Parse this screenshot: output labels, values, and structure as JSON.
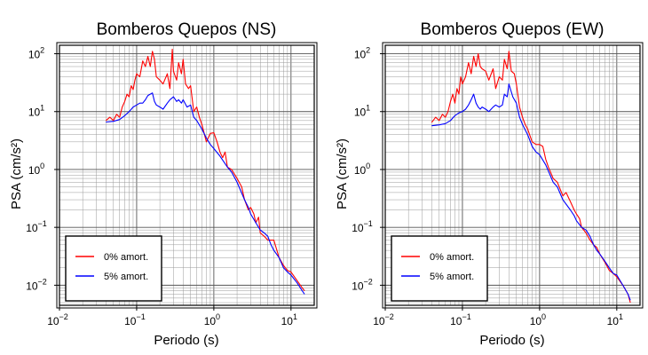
{
  "chart_data": [
    {
      "type": "line",
      "title": "Bomberos Quepos (NS)",
      "xlabel": "Periodo (s)",
      "ylabel": "PSA (cm/s²)",
      "xscale": "log",
      "yscale": "log",
      "xlim": [
        0.01,
        20
      ],
      "ylim": [
        0.0045,
        140
      ],
      "x_ticks": [
        {
          "value": 0.01,
          "base": "10",
          "exp": "−2"
        },
        {
          "value": 0.1,
          "base": "10",
          "exp": "−1"
        },
        {
          "value": 1,
          "base": "10",
          "exp": "0"
        },
        {
          "value": 10,
          "base": "10",
          "exp": "1"
        }
      ],
      "y_ticks": [
        {
          "value": 0.01,
          "base": "10",
          "exp": "−2"
        },
        {
          "value": 0.1,
          "base": "10",
          "exp": "−1"
        },
        {
          "value": 1,
          "base": "10",
          "exp": "0"
        },
        {
          "value": 10,
          "base": "10",
          "exp": "1"
        },
        {
          "value": 100,
          "base": "10",
          "exp": "2"
        }
      ],
      "grid": true,
      "legend_position": "bottom-left",
      "series": [
        {
          "name": "0% amort.",
          "color": "#ff0000",
          "points": [
            [
              0.04,
              7
            ],
            [
              0.045,
              8
            ],
            [
              0.05,
              7
            ],
            [
              0.055,
              9
            ],
            [
              0.06,
              8
            ],
            [
              0.065,
              12
            ],
            [
              0.07,
              15
            ],
            [
              0.075,
              20
            ],
            [
              0.08,
              18
            ],
            [
              0.085,
              28
            ],
            [
              0.09,
              24
            ],
            [
              0.095,
              35
            ],
            [
              0.1,
              45
            ],
            [
              0.11,
              40
            ],
            [
              0.12,
              75
            ],
            [
              0.13,
              60
            ],
            [
              0.14,
              90
            ],
            [
              0.15,
              60
            ],
            [
              0.16,
              110
            ],
            [
              0.17,
              80
            ],
            [
              0.18,
              40
            ],
            [
              0.2,
              35
            ],
            [
              0.22,
              30
            ],
            [
              0.25,
              45
            ],
            [
              0.27,
              25
            ],
            [
              0.29,
              120
            ],
            [
              0.3,
              50
            ],
            [
              0.33,
              35
            ],
            [
              0.35,
              70
            ],
            [
              0.38,
              45
            ],
            [
              0.4,
              80
            ],
            [
              0.43,
              30
            ],
            [
              0.47,
              25
            ],
            [
              0.5,
              28
            ],
            [
              0.55,
              10
            ],
            [
              0.6,
              12
            ],
            [
              0.65,
              8
            ],
            [
              0.7,
              6
            ],
            [
              0.8,
              3
            ],
            [
              0.9,
              4.2
            ],
            [
              1.0,
              4.3
            ],
            [
              1.1,
              3
            ],
            [
              1.2,
              2
            ],
            [
              1.3,
              1.6
            ],
            [
              1.4,
              2
            ],
            [
              1.5,
              1.1
            ],
            [
              1.7,
              1.0
            ],
            [
              2.0,
              0.7
            ],
            [
              2.3,
              0.5
            ],
            [
              2.5,
              0.3
            ],
            [
              2.8,
              0.2
            ],
            [
              3.0,
              0.22
            ],
            [
              3.3,
              0.17
            ],
            [
              3.5,
              0.12
            ],
            [
              3.8,
              0.15
            ],
            [
              4.0,
              0.08
            ],
            [
              4.5,
              0.07
            ],
            [
              5.0,
              0.06
            ],
            [
              5.5,
              0.06
            ],
            [
              6.0,
              0.06
            ],
            [
              7.0,
              0.03
            ],
            [
              8.0,
              0.022
            ],
            [
              9.0,
              0.018
            ],
            [
              10,
              0.017
            ],
            [
              12,
              0.012
            ],
            [
              14,
              0.009
            ],
            [
              15,
              0.008
            ]
          ]
        },
        {
          "name": "5% amort.",
          "color": "#0000ff",
          "points": [
            [
              0.04,
              6.6
            ],
            [
              0.05,
              6.8
            ],
            [
              0.06,
              7.3
            ],
            [
              0.07,
              8.5
            ],
            [
              0.08,
              10
            ],
            [
              0.09,
              12
            ],
            [
              0.1,
              13
            ],
            [
              0.11,
              14
            ],
            [
              0.12,
              14
            ],
            [
              0.13,
              16
            ],
            [
              0.14,
              19
            ],
            [
              0.15,
              20
            ],
            [
              0.16,
              21
            ],
            [
              0.17,
              15
            ],
            [
              0.18,
              13
            ],
            [
              0.2,
              12
            ],
            [
              0.22,
              11
            ],
            [
              0.25,
              14
            ],
            [
              0.27,
              16
            ],
            [
              0.3,
              18
            ],
            [
              0.33,
              15
            ],
            [
              0.35,
              16
            ],
            [
              0.38,
              14
            ],
            [
              0.4,
              16
            ],
            [
              0.45,
              12
            ],
            [
              0.5,
              13
            ],
            [
              0.55,
              8
            ],
            [
              0.6,
              7
            ],
            [
              0.7,
              5
            ],
            [
              0.8,
              3.5
            ],
            [
              0.9,
              2.7
            ],
            [
              1.0,
              2.3
            ],
            [
              1.2,
              1.7
            ],
            [
              1.5,
              1.1
            ],
            [
              1.7,
              0.9
            ],
            [
              2.0,
              0.6
            ],
            [
              2.5,
              0.3
            ],
            [
              2.8,
              0.22
            ],
            [
              3.0,
              0.17
            ],
            [
              3.5,
              0.12
            ],
            [
              4.0,
              0.09
            ],
            [
              4.5,
              0.08
            ],
            [
              5.0,
              0.07
            ],
            [
              5.5,
              0.05
            ],
            [
              6.0,
              0.04
            ],
            [
              7.0,
              0.03
            ],
            [
              8.0,
              0.02
            ],
            [
              9.0,
              0.017
            ],
            [
              10,
              0.015
            ],
            [
              12,
              0.011
            ],
            [
              14,
              0.008
            ],
            [
              15,
              0.007
            ]
          ]
        }
      ]
    },
    {
      "type": "line",
      "title": "Bomberos Quepos (EW)",
      "xlabel": "Periodo (s)",
      "ylabel": "PSA (cm/s²)",
      "xscale": "log",
      "yscale": "log",
      "xlim": [
        0.01,
        20
      ],
      "ylim": [
        0.0045,
        140
      ],
      "x_ticks": [
        {
          "value": 0.01,
          "base": "10",
          "exp": "−2"
        },
        {
          "value": 0.1,
          "base": "10",
          "exp": "−1"
        },
        {
          "value": 1,
          "base": "10",
          "exp": "0"
        },
        {
          "value": 10,
          "base": "10",
          "exp": "1"
        }
      ],
      "y_ticks": [
        {
          "value": 0.01,
          "base": "10",
          "exp": "−2"
        },
        {
          "value": 0.1,
          "base": "10",
          "exp": "−1"
        },
        {
          "value": 1,
          "base": "10",
          "exp": "0"
        },
        {
          "value": 10,
          "base": "10",
          "exp": "1"
        },
        {
          "value": 100,
          "base": "10",
          "exp": "2"
        }
      ],
      "grid": true,
      "legend_position": "bottom-left",
      "series": [
        {
          "name": "0% amort.",
          "color": "#ff0000",
          "points": [
            [
              0.04,
              6.5
            ],
            [
              0.045,
              8
            ],
            [
              0.05,
              7
            ],
            [
              0.055,
              9
            ],
            [
              0.06,
              8
            ],
            [
              0.065,
              10
            ],
            [
              0.07,
              15
            ],
            [
              0.075,
              20
            ],
            [
              0.08,
              14
            ],
            [
              0.085,
              25
            ],
            [
              0.09,
              20
            ],
            [
              0.095,
              40
            ],
            [
              0.1,
              30
            ],
            [
              0.11,
              40
            ],
            [
              0.12,
              70
            ],
            [
              0.13,
              45
            ],
            [
              0.14,
              90
            ],
            [
              0.15,
              60
            ],
            [
              0.16,
              100
            ],
            [
              0.17,
              60
            ],
            [
              0.18,
              55
            ],
            [
              0.2,
              50
            ],
            [
              0.22,
              35
            ],
            [
              0.25,
              55
            ],
            [
              0.27,
              25
            ],
            [
              0.3,
              40
            ],
            [
              0.33,
              35
            ],
            [
              0.35,
              80
            ],
            [
              0.38,
              55
            ],
            [
              0.4,
              110
            ],
            [
              0.43,
              50
            ],
            [
              0.47,
              45
            ],
            [
              0.5,
              30
            ],
            [
              0.55,
              12
            ],
            [
              0.6,
              8
            ],
            [
              0.65,
              6
            ],
            [
              0.7,
              5
            ],
            [
              0.8,
              3
            ],
            [
              0.9,
              2.7
            ],
            [
              1.0,
              2.7
            ],
            [
              1.1,
              2.5
            ],
            [
              1.2,
              1.5
            ],
            [
              1.3,
              1.1
            ],
            [
              1.5,
              0.7
            ],
            [
              1.7,
              0.6
            ],
            [
              2.0,
              0.35
            ],
            [
              2.2,
              0.4
            ],
            [
              2.5,
              0.28
            ],
            [
              2.8,
              0.2
            ],
            [
              3.0,
              0.17
            ],
            [
              3.3,
              0.14
            ],
            [
              3.5,
              0.1
            ],
            [
              4.0,
              0.08
            ],
            [
              4.5,
              0.06
            ],
            [
              5.0,
              0.05
            ],
            [
              5.5,
              0.045
            ],
            [
              6.0,
              0.035
            ],
            [
              7.0,
              0.025
            ],
            [
              8.0,
              0.018
            ],
            [
              9.0,
              0.016
            ],
            [
              10,
              0.014
            ],
            [
              12,
              0.01
            ],
            [
              14,
              0.007
            ],
            [
              15,
              0.005
            ]
          ]
        },
        {
          "name": "5% amort.",
          "color": "#0000ff",
          "points": [
            [
              0.04,
              5.7
            ],
            [
              0.05,
              5.9
            ],
            [
              0.06,
              6.2
            ],
            [
              0.07,
              7
            ],
            [
              0.08,
              8.5
            ],
            [
              0.09,
              9.5
            ],
            [
              0.1,
              10
            ],
            [
              0.11,
              11
            ],
            [
              0.12,
              13
            ],
            [
              0.13,
              16
            ],
            [
              0.14,
              20
            ],
            [
              0.15,
              14
            ],
            [
              0.16,
              12
            ],
            [
              0.17,
              11
            ],
            [
              0.18,
              12
            ],
            [
              0.2,
              11
            ],
            [
              0.22,
              10
            ],
            [
              0.25,
              12
            ],
            [
              0.27,
              13
            ],
            [
              0.3,
              12
            ],
            [
              0.33,
              13
            ],
            [
              0.35,
              20
            ],
            [
              0.38,
              18
            ],
            [
              0.4,
              30
            ],
            [
              0.45,
              18
            ],
            [
              0.5,
              14
            ],
            [
              0.55,
              8
            ],
            [
              0.6,
              6
            ],
            [
              0.7,
              4
            ],
            [
              0.8,
              2.5
            ],
            [
              0.9,
              2
            ],
            [
              1.0,
              1.8
            ],
            [
              1.2,
              1.2
            ],
            [
              1.5,
              0.6
            ],
            [
              1.7,
              0.5
            ],
            [
              2.0,
              0.3
            ],
            [
              2.5,
              0.2
            ],
            [
              2.8,
              0.16
            ],
            [
              3.0,
              0.13
            ],
            [
              3.5,
              0.1
            ],
            [
              4.0,
              0.09
            ],
            [
              4.5,
              0.07
            ],
            [
              5.0,
              0.05
            ],
            [
              5.5,
              0.04
            ],
            [
              6.0,
              0.035
            ],
            [
              7.0,
              0.026
            ],
            [
              8.0,
              0.02
            ],
            [
              9.0,
              0.016
            ],
            [
              10,
              0.015
            ],
            [
              12,
              0.01
            ],
            [
              14,
              0.007
            ],
            [
              15,
              0.0055
            ]
          ]
        }
      ]
    }
  ]
}
